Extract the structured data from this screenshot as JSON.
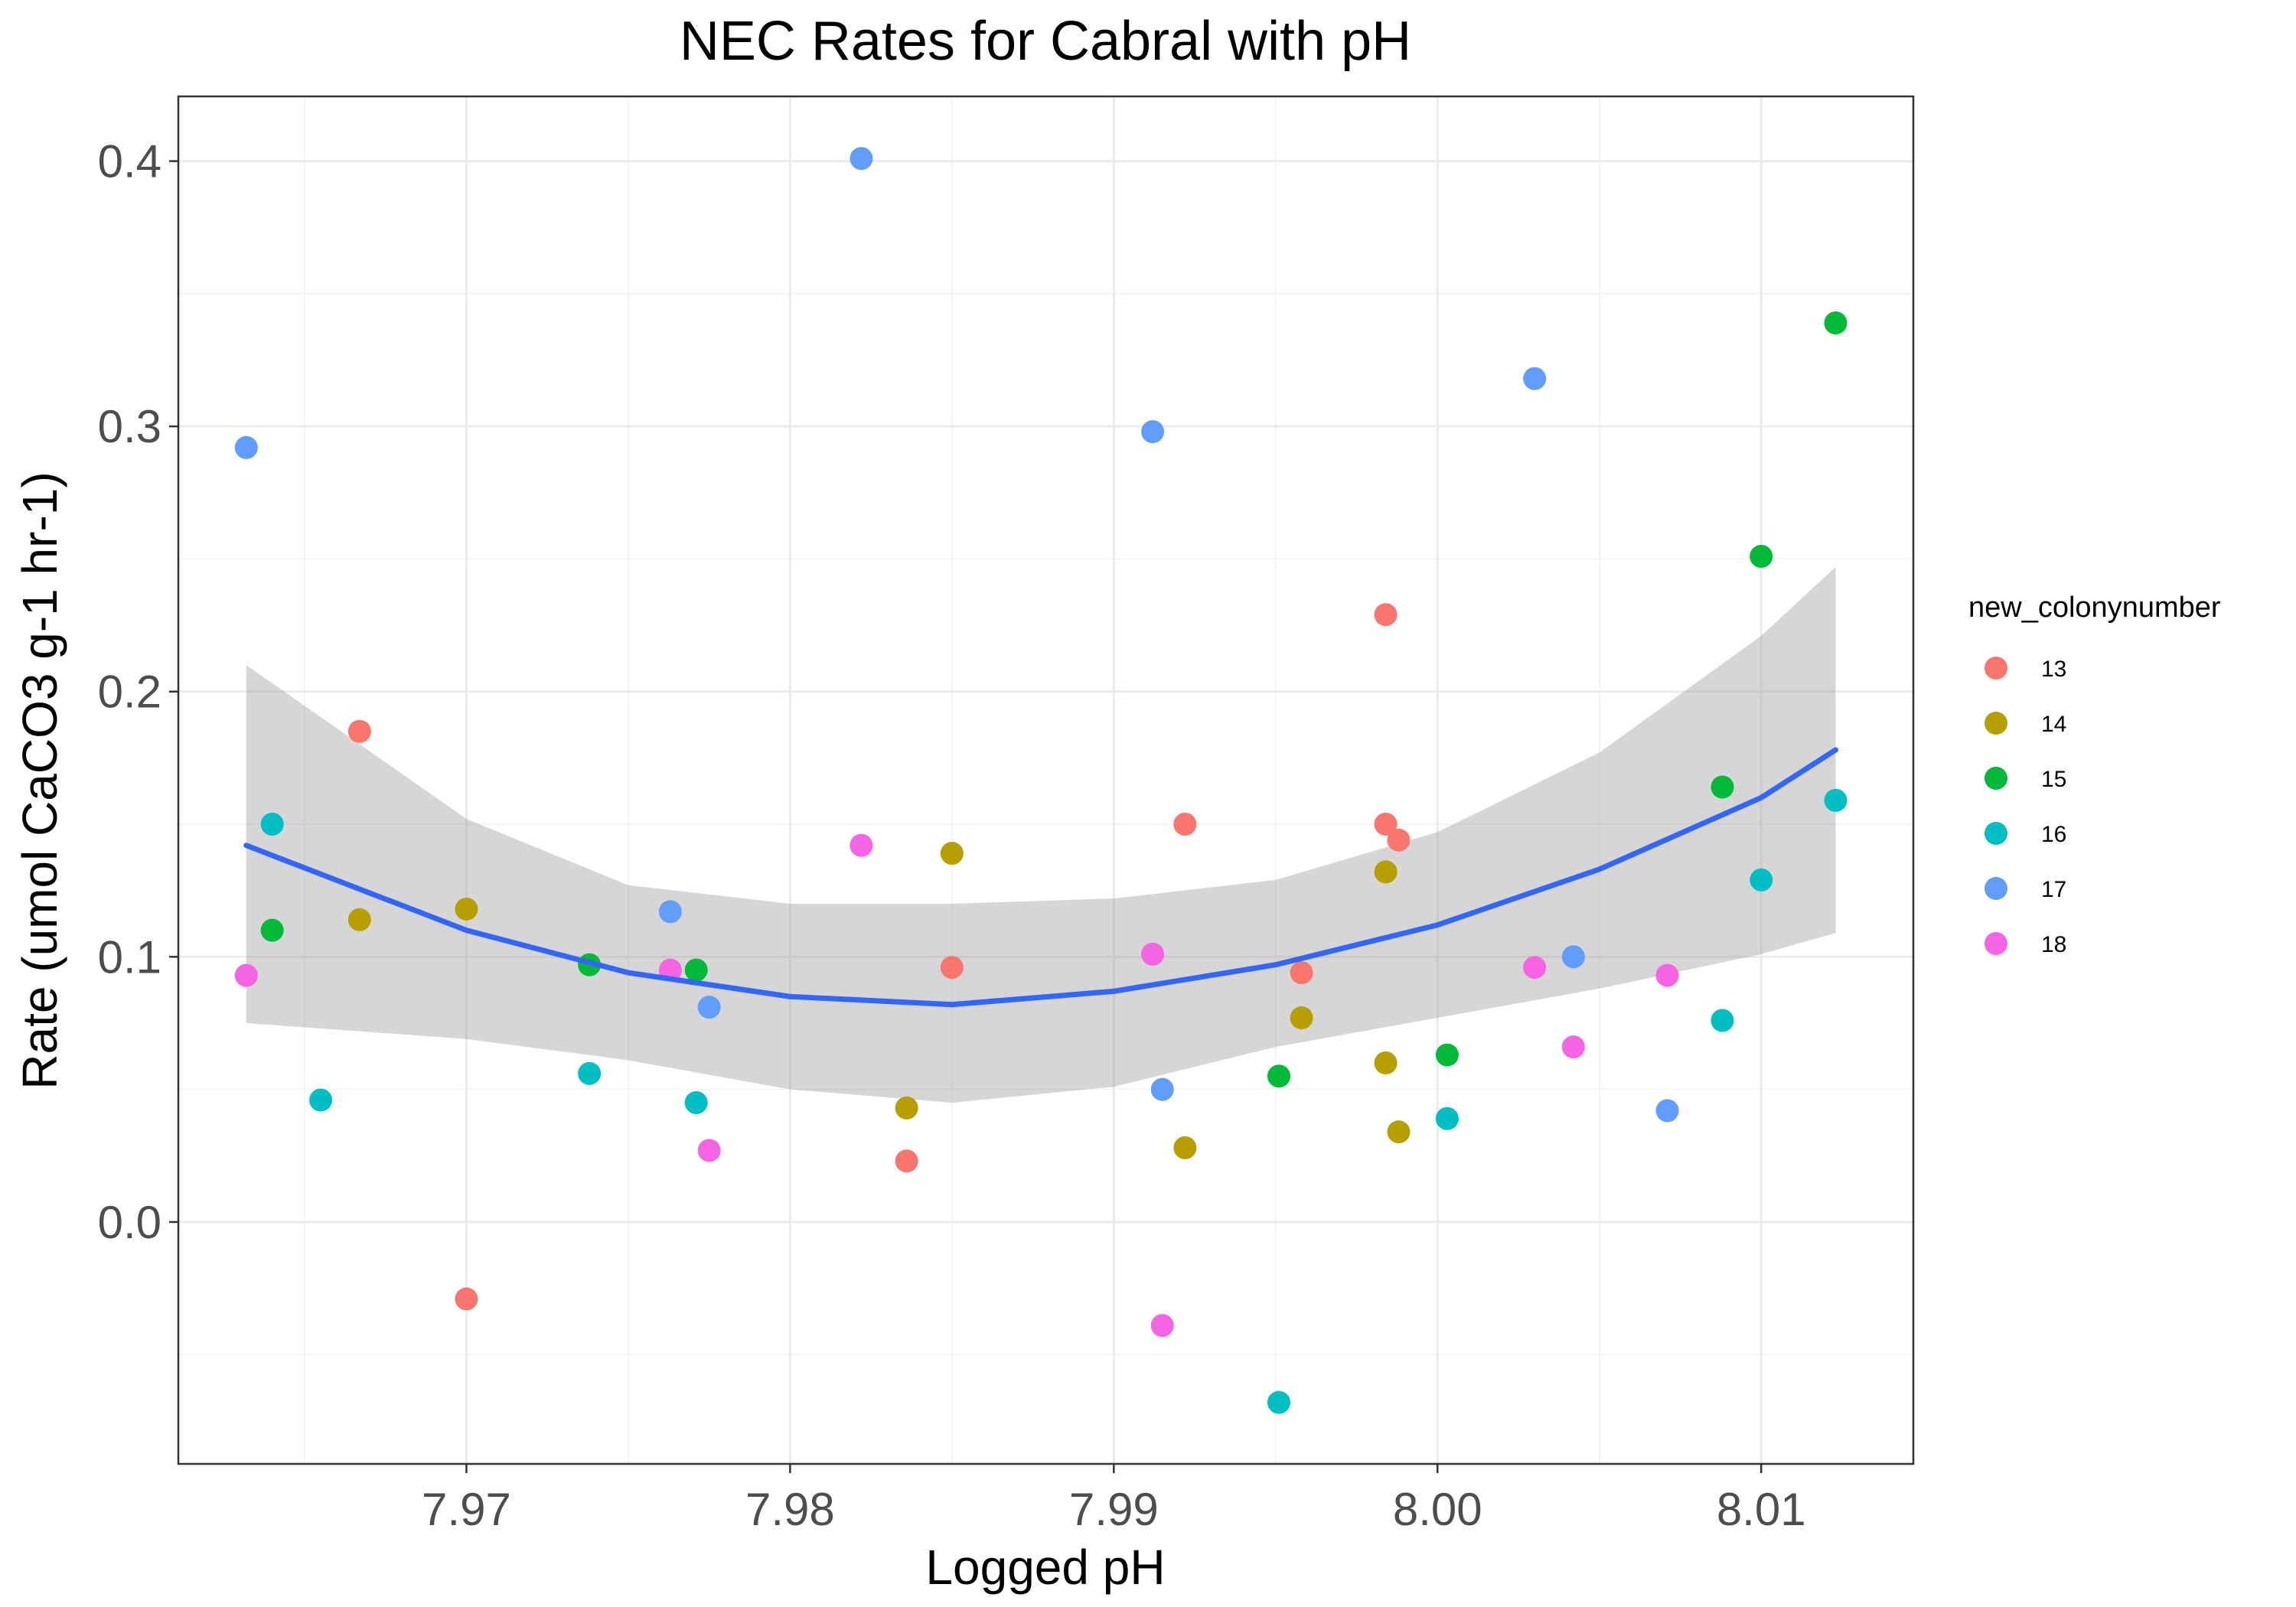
{
  "chart_data": {
    "type": "scatter",
    "title": "NEC Rates for Cabral with pH",
    "xlabel": "Logged pH",
    "ylabel": "Rate (umol CaCO3 g-1 hr-1)",
    "xlim": [
      7.9611,
      8.0147
    ],
    "ylim": [
      -0.0912,
      0.4244
    ],
    "x_ticks": [
      7.97,
      7.98,
      7.99,
      8.0,
      8.01
    ],
    "x_tick_labels": [
      "7.97",
      "7.98",
      "7.99",
      "8.00",
      "8.01"
    ],
    "y_ticks": [
      0.0,
      0.1,
      0.2,
      0.3,
      0.4
    ],
    "y_tick_labels": [
      "0.0",
      "0.1",
      "0.2",
      "0.3",
      "0.4"
    ],
    "x_minor": [
      7.965,
      7.975,
      7.985,
      7.995,
      8.005
    ],
    "y_minor": [
      -0.05,
      0.05,
      0.15,
      0.25,
      0.35
    ],
    "grid": true,
    "legend": {
      "title": "new_colonynumber",
      "placement": "right",
      "entries": [
        {
          "label": "13",
          "color": "#F8766D"
        },
        {
          "label": "14",
          "color": "#B79F00"
        },
        {
          "label": "15",
          "color": "#00BA38"
        },
        {
          "label": "16",
          "color": "#00BFC4"
        },
        {
          "label": "17",
          "color": "#619CFF"
        },
        {
          "label": "18",
          "color": "#F564E3"
        }
      ]
    },
    "series": [
      {
        "name": "13",
        "color": "#F8766D",
        "points": [
          {
            "x": 7.9667,
            "y": 0.185
          },
          {
            "x": 7.97,
            "y": -0.029
          },
          {
            "x": 7.9836,
            "y": 0.023
          },
          {
            "x": 7.985,
            "y": 0.096
          },
          {
            "x": 7.9922,
            "y": 0.15
          },
          {
            "x": 7.9958,
            "y": 0.094
          },
          {
            "x": 7.9984,
            "y": 0.229
          },
          {
            "x": 7.9984,
            "y": 0.15
          },
          {
            "x": 7.9988,
            "y": 0.144
          }
        ]
      },
      {
        "name": "14",
        "color": "#B79F00",
        "points": [
          {
            "x": 7.9667,
            "y": 0.114
          },
          {
            "x": 7.97,
            "y": 0.118
          },
          {
            "x": 7.9836,
            "y": 0.043
          },
          {
            "x": 7.985,
            "y": 0.139
          },
          {
            "x": 7.9922,
            "y": 0.028
          },
          {
            "x": 7.9958,
            "y": 0.077
          },
          {
            "x": 7.9984,
            "y": 0.132
          },
          {
            "x": 7.9984,
            "y": 0.06
          },
          {
            "x": 7.9988,
            "y": 0.034
          }
        ]
      },
      {
        "name": "15",
        "color": "#00BA38",
        "points": [
          {
            "x": 7.964,
            "y": 0.11
          },
          {
            "x": 7.9738,
            "y": 0.097
          },
          {
            "x": 7.9771,
            "y": 0.095
          },
          {
            "x": 7.9951,
            "y": 0.055
          },
          {
            "x": 8.0003,
            "y": 0.063
          },
          {
            "x": 8.0088,
            "y": 0.164
          },
          {
            "x": 8.01,
            "y": 0.251
          },
          {
            "x": 8.0123,
            "y": 0.339
          }
        ]
      },
      {
        "name": "16",
        "color": "#00BFC4",
        "points": [
          {
            "x": 7.964,
            "y": 0.15
          },
          {
            "x": 7.9655,
            "y": 0.046
          },
          {
            "x": 7.9738,
            "y": 0.056
          },
          {
            "x": 7.9771,
            "y": 0.045
          },
          {
            "x": 7.9951,
            "y": -0.068
          },
          {
            "x": 8.0003,
            "y": 0.039
          },
          {
            "x": 8.0088,
            "y": 0.076
          },
          {
            "x": 8.01,
            "y": 0.129
          },
          {
            "x": 8.0123,
            "y": 0.159
          }
        ]
      },
      {
        "name": "17",
        "color": "#619CFF",
        "points": [
          {
            "x": 7.9632,
            "y": 0.292
          },
          {
            "x": 7.9763,
            "y": 0.117
          },
          {
            "x": 7.9775,
            "y": 0.081
          },
          {
            "x": 7.9822,
            "y": 0.401
          },
          {
            "x": 7.9912,
            "y": 0.298
          },
          {
            "x": 7.9915,
            "y": 0.05
          },
          {
            "x": 8.003,
            "y": 0.318
          },
          {
            "x": 8.0042,
            "y": 0.1
          },
          {
            "x": 8.0071,
            "y": 0.042
          }
        ]
      },
      {
        "name": "18",
        "color": "#F564E3",
        "points": [
          {
            "x": 7.9632,
            "y": 0.093
          },
          {
            "x": 7.9763,
            "y": 0.095
          },
          {
            "x": 7.9775,
            "y": 0.027
          },
          {
            "x": 7.9822,
            "y": 0.142
          },
          {
            "x": 7.9912,
            "y": 0.101
          },
          {
            "x": 7.9915,
            "y": -0.039
          },
          {
            "x": 8.003,
            "y": 0.096
          },
          {
            "x": 8.0042,
            "y": 0.066
          },
          {
            "x": 8.0071,
            "y": 0.093
          }
        ]
      }
    ],
    "trend": {
      "method": "quadratic fit with confidence band",
      "color": "#3366FF",
      "band_color": "#999999",
      "points": [
        {
          "x": 7.9632,
          "y": 0.142,
          "lo": 0.075,
          "hi": 0.21
        },
        {
          "x": 7.97,
          "y": 0.11,
          "lo": 0.069,
          "hi": 0.152
        },
        {
          "x": 7.975,
          "y": 0.094,
          "lo": 0.061,
          "hi": 0.127
        },
        {
          "x": 7.98,
          "y": 0.085,
          "lo": 0.05,
          "hi": 0.12
        },
        {
          "x": 7.985,
          "y": 0.082,
          "lo": 0.045,
          "hi": 0.12
        },
        {
          "x": 7.99,
          "y": 0.087,
          "lo": 0.051,
          "hi": 0.122
        },
        {
          "x": 7.995,
          "y": 0.097,
          "lo": 0.066,
          "hi": 0.129
        },
        {
          "x": 8.0,
          "y": 0.112,
          "lo": 0.077,
          "hi": 0.147
        },
        {
          "x": 8.005,
          "y": 0.133,
          "lo": 0.088,
          "hi": 0.177
        },
        {
          "x": 8.01,
          "y": 0.16,
          "lo": 0.101,
          "hi": 0.221
        },
        {
          "x": 8.0123,
          "y": 0.178,
          "lo": 0.109,
          "hi": 0.247
        }
      ]
    }
  }
}
